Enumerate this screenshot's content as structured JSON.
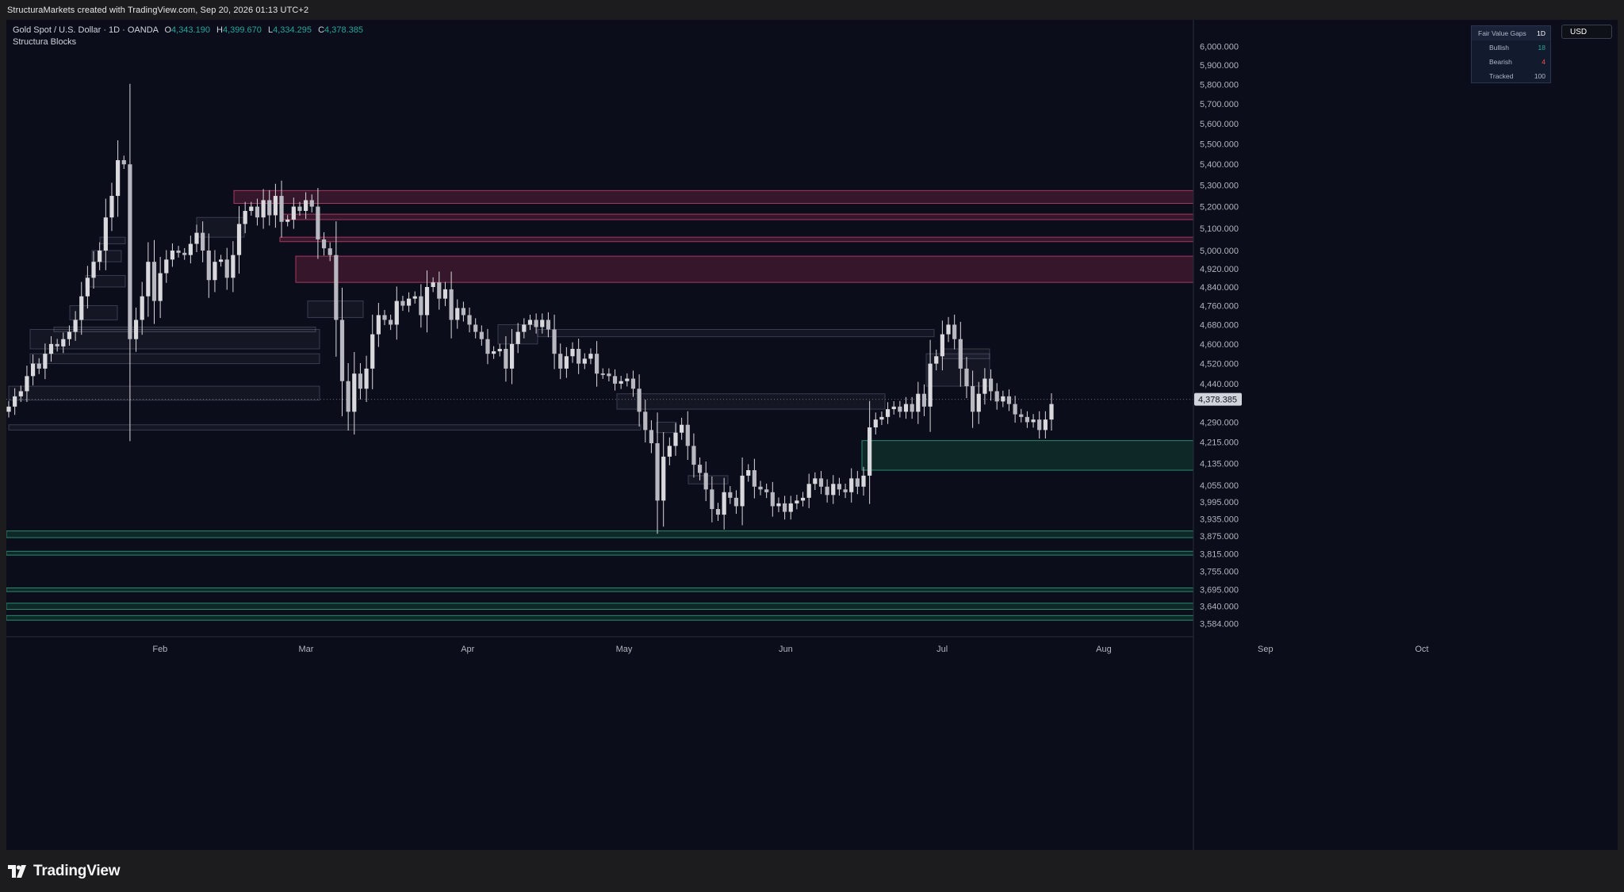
{
  "header": {
    "credit": "StructuraMarkets created with TradingView.com, Sep 20, 2026 01:13 UTC+2"
  },
  "legend": {
    "symbol": "Gold Spot / U.S. Dollar · 1D · OANDA",
    "open_label": "O",
    "open": "4,343.190",
    "high_label": "H",
    "high": "4,399.670",
    "low_label": "L",
    "low": "4,334.295",
    "close_label": "C",
    "close": "4,378.385",
    "indicator": "Structura Blocks"
  },
  "fvg_table": {
    "title": "Fair Value Gaps",
    "timeframe": "1D",
    "bullish_label": "Bullish",
    "bullish": "18",
    "bearish_label": "Bearish",
    "bearish": "4",
    "tracked_label": "Tracked",
    "tracked": "100"
  },
  "price_scale": {
    "currency": "USD",
    "last_price_label": "4,378.385"
  },
  "brand": {
    "name": "TradingView"
  },
  "colors": {
    "background": "#0b0d1a",
    "candle": "#d9d9dd",
    "bearish_zone_fill": "#5a1f3b",
    "bearish_zone_border": "#a33a5f",
    "bullish_zone_fill": "#103a32",
    "bullish_zone_border": "#2a8a6e",
    "neutral_block": "#8a8fa8",
    "axis_text": "#b2b5be",
    "bullish_text": "#26a69a",
    "bearish_text": "#ef5350"
  },
  "chart_data": {
    "type": "candlestick",
    "symbol": "XAUUSD",
    "timeframe": "1D",
    "y_scale": "log",
    "ylim": [
      3550,
      6100
    ],
    "xlim": [
      "2026-01-01",
      "2026-10-20"
    ],
    "x_ticks": [
      {
        "label": "Feb",
        "date": "2026-02-01"
      },
      {
        "label": "Mar",
        "date": "2026-03-01"
      },
      {
        "label": "Apr",
        "date": "2026-04-01"
      },
      {
        "label": "May",
        "date": "2026-05-01"
      },
      {
        "label": "Jun",
        "date": "2026-06-01"
      },
      {
        "label": "Jul",
        "date": "2026-07-01"
      },
      {
        "label": "Aug",
        "date": "2026-08-01"
      },
      {
        "label": "Sep",
        "date": "2026-09-01"
      },
      {
        "label": "Oct",
        "date": "2026-10-01"
      }
    ],
    "y_ticks": [
      "6,000.000",
      "5,900.000",
      "5,800.000",
      "5,700.000",
      "5,600.000",
      "5,500.000",
      "5,400.000",
      "5,300.000",
      "5,200.000",
      "5,100.000",
      "5,000.000",
      "4,920.000",
      "4,840.000",
      "4,760.000",
      "4,680.000",
      "4,600.000",
      "4,520.000",
      "4,440.000",
      "4,290.000",
      "4,215.000",
      "4,135.000",
      "4,055.000",
      "3,995.000",
      "3,935.000",
      "3,875.000",
      "3,815.000",
      "3,755.000",
      "3,695.000",
      "3,640.000",
      "3,584.000"
    ],
    "last_price": 4378.385,
    "candles_close": [
      4350,
      4390,
      4410,
      4470,
      4520,
      4500,
      4560,
      4600,
      4590,
      4620,
      4650,
      4700,
      4800,
      4880,
      4950,
      5000,
      5150,
      5250,
      5420,
      5400,
      4620,
      4700,
      4800,
      4950,
      4780,
      4900,
      4960,
      5000,
      4990,
      4980,
      5030,
      5080,
      5000,
      4870,
      4950,
      4960,
      4880,
      4980,
      5120,
      5180,
      5200,
      5150,
      5230,
      5160,
      5250,
      5130,
      5140,
      5200,
      5180,
      5230,
      5200,
      5050,
      5010,
      4980,
      4700,
      4450,
      4330,
      4480,
      4420,
      4500,
      4640,
      4720,
      4700,
      4680,
      4780,
      4760,
      4790,
      4800,
      4720,
      4840,
      4860,
      4790,
      4830,
      4700,
      4750,
      4720,
      4680,
      4650,
      4620,
      4560,
      4570,
      4580,
      4500,
      4600,
      4650,
      4680,
      4700,
      4670,
      4700,
      4660,
      4560,
      4500,
      4550,
      4580,
      4520,
      4540,
      4560,
      4480,
      4480,
      4470,
      4440,
      4450,
      4460,
      4420,
      4330,
      4260,
      4210,
      4000,
      4160,
      4200,
      4250,
      4280,
      4200,
      4130,
      4100,
      4040,
      3970,
      3950,
      4030,
      4010,
      3980,
      4090,
      4110,
      4050,
      4040,
      4030,
      3980,
      3990,
      3960,
      3990,
      4000,
      4010,
      4060,
      4080,
      4050,
      4020,
      4060,
      4040,
      4030,
      4080,
      4050,
      4090,
      4270,
      4300,
      4310,
      4340,
      4350,
      4330,
      4360,
      4330,
      4400,
      4350,
      4520,
      4550,
      4640,
      4680,
      4620,
      4500,
      4430,
      4330,
      4400,
      4460,
      4410,
      4370,
      4390,
      4360,
      4320,
      4310,
      4290,
      4300,
      4260,
      4300,
      4360
    ]
  },
  "zones": {
    "bearish": [
      {
        "label": "",
        "top": 5275,
        "bottom": 5215
      },
      {
        "label": "",
        "top": 5165,
        "bottom": 5140
      },
      {
        "label": "",
        "top": 5060,
        "bottom": 5040
      },
      {
        "label": "",
        "top": 4975,
        "bottom": 4860
      }
    ],
    "bullish": [
      {
        "label": "",
        "top": 4220,
        "bottom": 4110
      },
      {
        "label": "",
        "top": 3893,
        "bottom": 3870
      },
      {
        "label": "",
        "top": 3823,
        "bottom": 3810
      },
      {
        "label": "",
        "top": 3700,
        "bottom": 3688
      },
      {
        "label": "",
        "top": 3650,
        "bottom": 3630
      },
      {
        "label": "",
        "top": 3610,
        "bottom": 3595
      }
    ]
  }
}
